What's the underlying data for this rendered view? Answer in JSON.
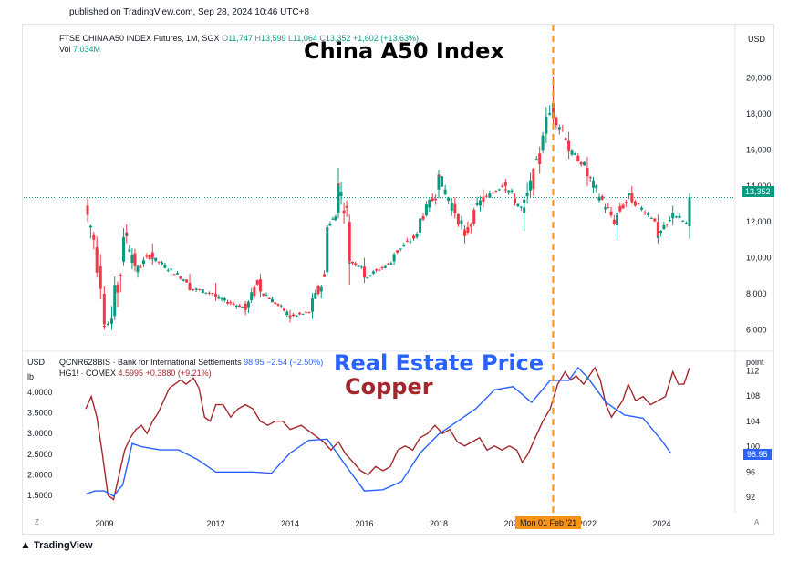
{
  "header": {
    "published": "published on TradingView.com, Sep 28, 2024 10:46 UTC+8"
  },
  "top_panel": {
    "symbol": "FTSE CHINA A50 INDEX Futures, 1M, SGX",
    "o_label": "O",
    "o_value": "11,747",
    "h_label": "H",
    "h_value": "13,599",
    "l_label": "L",
    "l_value": "11,064",
    "c_label": "C",
    "c_value": "13,352",
    "change": "+1,602 (+13.63%)",
    "vol_label": "Vol",
    "vol_value": "7.034M",
    "currency": "USD",
    "last_price": "13,352",
    "annotation": "China A50 Index"
  },
  "bottom_panel": {
    "left_currency": "USD",
    "left_unit": "lb",
    "right_unit": "point",
    "series1_name": "QCNR628BIS · Bank for International Settlements",
    "series1_value": "98.95",
    "series1_change": "−2.54 (−2.50%)",
    "series2_name": "HG1! · COMEX",
    "series2_value": "4.5995",
    "series2_change": "+0.3880 (+9.21%)",
    "last_point": "98.95",
    "annotation_real_estate": "Real Estate Price",
    "annotation_copper": "Copper"
  },
  "crosshair": {
    "label": "Mon 01 Feb '21"
  },
  "footer": {
    "brand": "TradingView",
    "corner_left": "Z",
    "corner_right": "A"
  },
  "colors": {
    "up": "#089981",
    "down": "#f23645",
    "copper": "#a3282d",
    "real_estate": "#2962ff",
    "crosshair": "#f7931a",
    "last_price_bg": "#089981"
  },
  "chart_data": [
    {
      "type": "candlestick",
      "title": "FTSE CHINA A50 INDEX Futures, 1M, SGX",
      "y_ticks": [
        6000,
        8000,
        10000,
        12000,
        14000,
        16000,
        18000,
        20000
      ],
      "ylim": [
        4900,
        21400
      ],
      "x_ticks": [
        "2009",
        "2012",
        "2014",
        "2016",
        "2018",
        "2020",
        "2022",
        "2024"
      ],
      "last": 13352,
      "ohlc_keypoints": [
        {
          "x": 2008.55,
          "o": 12900,
          "h": 13300,
          "l": 12000,
          "c": 12400
        },
        {
          "x": 2008.8,
          "o": 10500,
          "h": 11000,
          "l": 9800,
          "c": 10200
        },
        {
          "x": 2009.0,
          "o": 8000,
          "h": 8400,
          "l": 6000,
          "c": 6300
        },
        {
          "x": 2009.2,
          "o": 6400,
          "h": 6700,
          "l": 6000,
          "c": 6500
        },
        {
          "x": 2009.6,
          "o": 11300,
          "h": 11400,
          "l": 11200,
          "c": 11300
        },
        {
          "x": 2009.9,
          "o": 9200,
          "h": 9600,
          "l": 8900,
          "c": 9400
        },
        {
          "x": 2010.3,
          "o": 10300,
          "h": 10800,
          "l": 9600,
          "c": 10000
        },
        {
          "x": 2011.3,
          "o": 8600,
          "h": 9100,
          "l": 8200,
          "c": 8300
        },
        {
          "x": 2012.0,
          "o": 8000,
          "h": 8600,
          "l": 7600,
          "c": 7800
        },
        {
          "x": 2012.8,
          "o": 7200,
          "h": 7600,
          "l": 6800,
          "c": 7100
        },
        {
          "x": 2013.2,
          "o": 8800,
          "h": 9100,
          "l": 7800,
          "c": 8200
        },
        {
          "x": 2014.0,
          "o": 6800,
          "h": 7100,
          "l": 6400,
          "c": 6700
        },
        {
          "x": 2014.6,
          "o": 7000,
          "h": 7600,
          "l": 6600,
          "c": 7400
        },
        {
          "x": 2015.0,
          "o": 9200,
          "h": 11800,
          "l": 9000,
          "c": 11700
        },
        {
          "x": 2015.3,
          "o": 12500,
          "h": 15000,
          "l": 12200,
          "c": 14000
        },
        {
          "x": 2015.6,
          "o": 12000,
          "h": 12400,
          "l": 8500,
          "c": 9800
        },
        {
          "x": 2016.0,
          "o": 9500,
          "h": 10000,
          "l": 8600,
          "c": 8900
        },
        {
          "x": 2016.8,
          "o": 9800,
          "h": 10300,
          "l": 9600,
          "c": 10200
        },
        {
          "x": 2017.5,
          "o": 11400,
          "h": 12200,
          "l": 11200,
          "c": 12100
        },
        {
          "x": 2018.0,
          "o": 13800,
          "h": 14900,
          "l": 13300,
          "c": 14500
        },
        {
          "x": 2018.7,
          "o": 11500,
          "h": 11800,
          "l": 10800,
          "c": 11200
        },
        {
          "x": 2019.2,
          "o": 13400,
          "h": 13800,
          "l": 12800,
          "c": 13200
        },
        {
          "x": 2019.8,
          "o": 14200,
          "h": 14400,
          "l": 13600,
          "c": 14000
        },
        {
          "x": 2020.3,
          "o": 12500,
          "h": 13000,
          "l": 11500,
          "c": 12800
        },
        {
          "x": 2020.8,
          "o": 16000,
          "h": 17000,
          "l": 15800,
          "c": 16800
        },
        {
          "x": 2021.08,
          "o": 18600,
          "h": 20100,
          "l": 17500,
          "c": 18000
        },
        {
          "x": 2021.5,
          "o": 16500,
          "h": 17000,
          "l": 15500,
          "c": 16000
        },
        {
          "x": 2022.0,
          "o": 15000,
          "h": 15600,
          "l": 14000,
          "c": 14600
        },
        {
          "x": 2022.8,
          "o": 11800,
          "h": 12600,
          "l": 11000,
          "c": 12400
        },
        {
          "x": 2023.2,
          "o": 13600,
          "h": 14000,
          "l": 13000,
          "c": 13200
        },
        {
          "x": 2023.9,
          "o": 12000,
          "h": 12400,
          "l": 10800,
          "c": 11200
        },
        {
          "x": 2024.3,
          "o": 12200,
          "h": 12900,
          "l": 11800,
          "c": 12500
        },
        {
          "x": 2024.75,
          "o": 11747,
          "h": 13599,
          "l": 11064,
          "c": 13352
        }
      ]
    },
    {
      "type": "line",
      "series": [
        {
          "name": "HG1! · COMEX",
          "axis": "left",
          "unit": "USD/lb",
          "y_ticks": [
            1.5,
            2.0,
            2.5,
            3.0,
            3.5,
            4.0
          ],
          "ylim": [
            1.3,
            4.6
          ],
          "points": [
            [
              2008.5,
              3.6
            ],
            [
              2008.65,
              3.9
            ],
            [
              2008.8,
              3.4
            ],
            [
              2008.95,
              2.5
            ],
            [
              2009.1,
              1.5
            ],
            [
              2009.25,
              1.4
            ],
            [
              2009.4,
              2.0
            ],
            [
              2009.55,
              2.6
            ],
            [
              2009.7,
              2.9
            ],
            [
              2009.85,
              3.1
            ],
            [
              2010.0,
              3.2
            ],
            [
              2010.15,
              3.0
            ],
            [
              2010.3,
              3.3
            ],
            [
              2010.45,
              3.5
            ],
            [
              2010.6,
              3.8
            ],
            [
              2010.75,
              4.1
            ],
            [
              2010.9,
              4.2
            ],
            [
              2011.05,
              4.3
            ],
            [
              2011.2,
              4.2
            ],
            [
              2011.4,
              4.35
            ],
            [
              2011.55,
              4.1
            ],
            [
              2011.7,
              3.4
            ],
            [
              2011.85,
              3.3
            ],
            [
              2012.0,
              3.7
            ],
            [
              2012.2,
              3.7
            ],
            [
              2012.4,
              3.4
            ],
            [
              2012.6,
              3.6
            ],
            [
              2012.8,
              3.7
            ],
            [
              2013.0,
              3.6
            ],
            [
              2013.2,
              3.3
            ],
            [
              2013.4,
              3.2
            ],
            [
              2013.6,
              3.3
            ],
            [
              2013.8,
              3.3
            ],
            [
              2014.0,
              3.1
            ],
            [
              2014.3,
              3.2
            ],
            [
              2014.6,
              3.0
            ],
            [
              2014.9,
              2.8
            ],
            [
              2015.1,
              2.6
            ],
            [
              2015.3,
              2.8
            ],
            [
              2015.5,
              2.5
            ],
            [
              2015.7,
              2.3
            ],
            [
              2015.9,
              2.1
            ],
            [
              2016.1,
              2.0
            ],
            [
              2016.3,
              2.2
            ],
            [
              2016.5,
              2.1
            ],
            [
              2016.7,
              2.2
            ],
            [
              2016.9,
              2.6
            ],
            [
              2017.1,
              2.7
            ],
            [
              2017.3,
              2.6
            ],
            [
              2017.5,
              2.9
            ],
            [
              2017.7,
              3.0
            ],
            [
              2017.9,
              3.2
            ],
            [
              2018.1,
              3.0
            ],
            [
              2018.3,
              3.1
            ],
            [
              2018.5,
              2.8
            ],
            [
              2018.7,
              2.7
            ],
            [
              2018.9,
              2.8
            ],
            [
              2019.1,
              2.9
            ],
            [
              2019.3,
              2.6
            ],
            [
              2019.5,
              2.7
            ],
            [
              2019.7,
              2.6
            ],
            [
              2019.9,
              2.7
            ],
            [
              2020.1,
              2.6
            ],
            [
              2020.25,
              2.3
            ],
            [
              2020.4,
              2.5
            ],
            [
              2020.6,
              2.9
            ],
            [
              2020.8,
              3.3
            ],
            [
              2021.0,
              3.6
            ],
            [
              2021.2,
              4.2
            ],
            [
              2021.4,
              4.5
            ],
            [
              2021.55,
              4.3
            ],
            [
              2021.7,
              4.4
            ],
            [
              2021.9,
              4.2
            ],
            [
              2022.05,
              4.4
            ],
            [
              2022.2,
              4.6
            ],
            [
              2022.35,
              4.3
            ],
            [
              2022.5,
              3.7
            ],
            [
              2022.65,
              3.4
            ],
            [
              2022.8,
              3.6
            ],
            [
              2022.95,
              3.8
            ],
            [
              2023.1,
              4.2
            ],
            [
              2023.3,
              3.8
            ],
            [
              2023.5,
              3.9
            ],
            [
              2023.7,
              3.7
            ],
            [
              2023.9,
              3.8
            ],
            [
              2024.1,
              3.9
            ],
            [
              2024.3,
              4.5
            ],
            [
              2024.45,
              4.2
            ],
            [
              2024.6,
              4.2
            ],
            [
              2024.75,
              4.5995
            ]
          ]
        },
        {
          "name": "QCNR628BIS · Bank for International Settlements",
          "axis": "right",
          "unit": "point",
          "y_ticks": [
            92,
            96,
            100,
            104,
            108,
            112
          ],
          "ylim": [
            91,
            112.5
          ],
          "points": [
            [
              2008.5,
              92.5
            ],
            [
              2008.75,
              93.0
            ],
            [
              2009.0,
              93.0
            ],
            [
              2009.25,
              92.2
            ],
            [
              2009.5,
              94.0
            ],
            [
              2009.75,
              100.5
            ],
            [
              2010.0,
              100.0
            ],
            [
              2010.5,
              99.5
            ],
            [
              2011.0,
              99.5
            ],
            [
              2011.5,
              98.0
            ],
            [
              2012.0,
              96.0
            ],
            [
              2012.5,
              96.0
            ],
            [
              2013.0,
              96.0
            ],
            [
              2013.5,
              95.8
            ],
            [
              2014.0,
              99.0
            ],
            [
              2014.5,
              101.0
            ],
            [
              2015.0,
              101.2
            ],
            [
              2015.5,
              97.0
            ],
            [
              2016.0,
              93.0
            ],
            [
              2016.5,
              93.2
            ],
            [
              2017.0,
              94.5
            ],
            [
              2017.5,
              99.0
            ],
            [
              2018.0,
              102.0
            ],
            [
              2018.5,
              104.0
            ],
            [
              2019.0,
              106.0
            ],
            [
              2019.5,
              109.0
            ],
            [
              2020.0,
              109.5
            ],
            [
              2020.5,
              107.0
            ],
            [
              2021.0,
              110.5
            ],
            [
              2021.5,
              110.5
            ],
            [
              2021.75,
              112.5
            ],
            [
              2022.0,
              111.0
            ],
            [
              2022.5,
              107.0
            ],
            [
              2023.0,
              105.0
            ],
            [
              2023.5,
              104.5
            ],
            [
              2024.0,
              101.0
            ],
            [
              2024.25,
              98.95
            ]
          ]
        }
      ],
      "x_ticks": [
        "2009",
        "2012",
        "2014",
        "2016",
        "2018",
        "2020",
        "2022",
        "2024"
      ]
    }
  ]
}
